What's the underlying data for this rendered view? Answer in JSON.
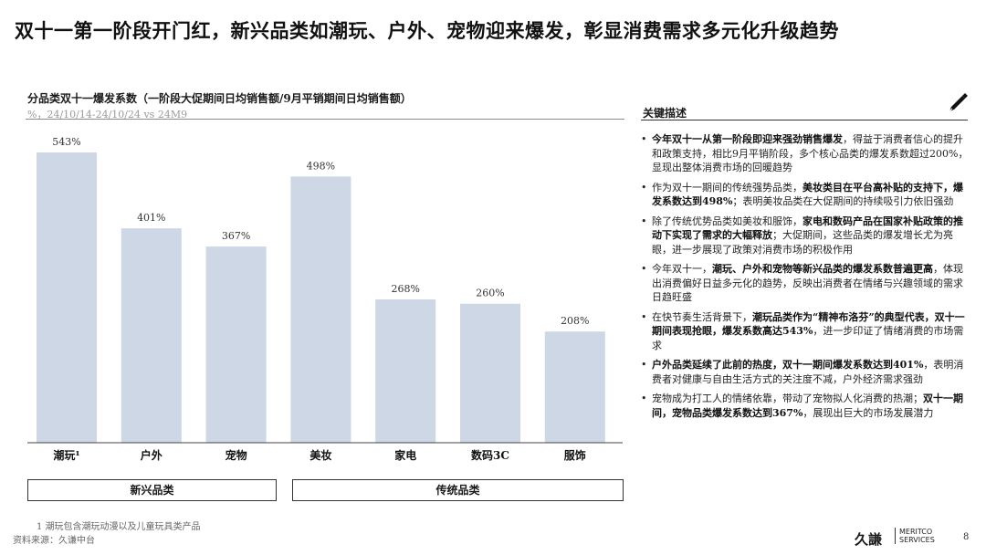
{
  "headline": "双十一第一阶段开门红，新兴品类如潮玩、户外、宠物迎来爆发，彰显消费需求多元化升级趋势",
  "chart_data": {
    "type": "bar",
    "title": "分品类双十一爆发系数（一阶段大促期间日均销售额/9月平销期间日均销售额）",
    "subtitle": "%，24/10/14-24/10/24 vs 24M9",
    "categories": [
      "潮玩¹",
      "户外",
      "宠物",
      "美妆",
      "家电",
      "数码3C",
      "服饰"
    ],
    "values": [
      543,
      401,
      367,
      498,
      268,
      260,
      208
    ],
    "value_labels": [
      "543%",
      "401%",
      "367%",
      "498%",
      "268%",
      "260%",
      "208%"
    ],
    "bar_color": "#cdd7e6",
    "ylim": [
      0,
      543
    ],
    "grid": false,
    "groups": [
      {
        "label": "新兴品类",
        "categories": [
          "潮玩¹",
          "户外",
          "宠物"
        ]
      },
      {
        "label": "传统品类",
        "categories": [
          "美妆",
          "家电",
          "数码3C",
          "服饰"
        ]
      }
    ]
  },
  "panel": {
    "header": "关键描述",
    "icon": "pen-icon",
    "bullets": [
      [
        {
          "t": "今年双十一从第一阶段即迎来强劲销售爆发",
          "b": true
        },
        {
          "t": "，得益于消费者信心的提升和政策支持，相比9月平销阶段，多个核心品类的爆发系数超过200%，显现出整体消费市场的回暖趋势",
          "b": false
        }
      ],
      [
        {
          "t": "作为双十一期间的传统强势品类，",
          "b": false
        },
        {
          "t": "美妆类目在平台高补贴的支持下，爆发系数达到498%",
          "b": true
        },
        {
          "t": "；表明美妆品类在大促期间的持续吸引力依旧强劲",
          "b": false
        }
      ],
      [
        {
          "t": "除了传统优势品类如美妆和服饰，",
          "b": false
        },
        {
          "t": "家电和数码产品在国家补贴政策的推动下实现了需求的大幅释放",
          "b": true
        },
        {
          "t": "；大促期间，这些品类的爆发增长尤为亮眼，进一步展现了政策对消费市场的积极作用",
          "b": false
        }
      ],
      [
        {
          "t": "今年双十一，",
          "b": false
        },
        {
          "t": "潮玩、户外和宠物等新兴品类的爆发系数普遍更高",
          "b": true
        },
        {
          "t": "，体现出消费偏好日益多元化的趋势，反映出消费者在情绪与兴趣领域的需求日趋旺盛",
          "b": false
        }
      ],
      [
        {
          "t": "在快节奏生活背景下，",
          "b": false
        },
        {
          "t": "潮玩品类作为“精神布洛芬”的典型代表，双十一期间表现抢眼，爆发系数高达543%",
          "b": true
        },
        {
          "t": "，进一步印证了情绪消费的市场需求",
          "b": false
        }
      ],
      [
        {
          "t": "户外品类延续了此前的热度，双十一期间爆发系数达到401%",
          "b": true
        },
        {
          "t": "，表明消费者对健康与自由生活方式的关注度不减，户外经济需求强劲",
          "b": false
        }
      ],
      [
        {
          "t": "宠物成为打工人的情绪依靠，带动了宠物拟人化消费的热潮；",
          "b": false
        },
        {
          "t": "双十一期间，宠物品类爆发系数达到367%",
          "b": true
        },
        {
          "t": "，展现出巨大的市场发展潜力",
          "b": false
        }
      ]
    ]
  },
  "footnote": "1   潮玩包含潮玩动漫以及儿童玩具类产品",
  "source": "资料来源：久谦中台",
  "logo": {
    "text": "久謙",
    "sub1": "MERITCO",
    "sub2": "SERVICES"
  },
  "page_number": "8"
}
